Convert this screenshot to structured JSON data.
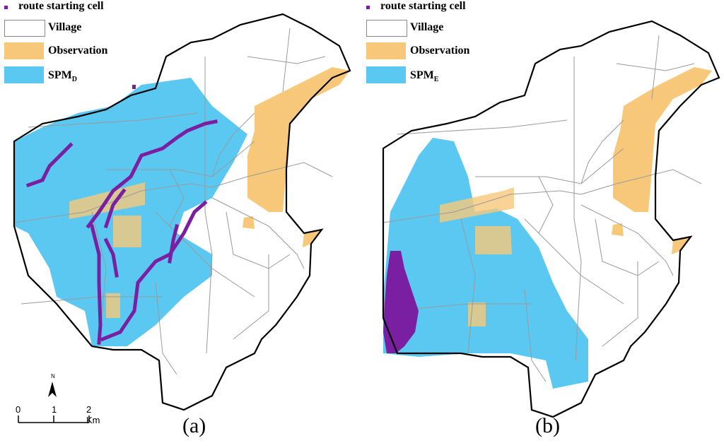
{
  "legend": {
    "items": [
      {
        "key": "route",
        "label": "route starting cell",
        "color": "#7b1fa2"
      },
      {
        "key": "village",
        "label": "Village",
        "color": "#ffffff",
        "border": "#888888"
      },
      {
        "key": "observation",
        "label": "Observation",
        "color": "#f8c87a"
      }
    ]
  },
  "panels": [
    {
      "id": "a",
      "label": "(a)",
      "spm_main": "SPM",
      "spm_sub": "D",
      "spm_color": "#5ac8f0"
    },
    {
      "id": "b",
      "label": "(b)",
      "spm_main": "SPM",
      "spm_sub": "E",
      "spm_color": "#5ac8f0"
    }
  ],
  "scale": {
    "tick0": "0",
    "tick1": "1",
    "tick2": "2 Km",
    "north": "N"
  },
  "colors": {
    "outline": "#000000",
    "village_line": "#9a9a9a",
    "route": "#7b1fa2",
    "observation": "#f8c87a",
    "spm": "#5ac8f0"
  }
}
